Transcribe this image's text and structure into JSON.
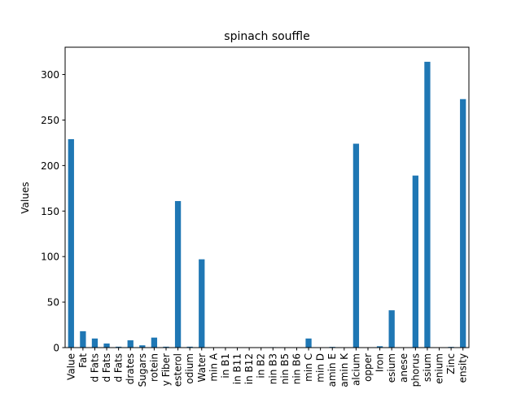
{
  "chart_data": {
    "type": "bar",
    "title": "spinach souffle",
    "xlabel": "",
    "ylabel": "Values",
    "ylim": [
      0,
      330
    ],
    "yticks": [
      0,
      50,
      100,
      150,
      200,
      250,
      300
    ],
    "grid": false,
    "legend": "none",
    "bar_color": "#1f77b4",
    "categories": [
      "Value",
      "Fat",
      "d Fats",
      "d Fats",
      "d Fats",
      "drates",
      "Sugars",
      "rotein",
      "y Fiber",
      "esterol",
      "odium",
      "Water",
      "min A",
      "in B1",
      "in B11",
      "in B12",
      "in B2",
      "nin B3",
      "nin B5",
      "nin B6",
      "min C",
      "min D",
      "amin E",
      "amin K",
      "alcium",
      "opper",
      "Iron",
      "esium",
      "anese",
      "phorus",
      "ssium",
      "enium",
      "Zinc",
      "ensity"
    ],
    "values": [
      229,
      18,
      10,
      4.5,
      1,
      8,
      2.5,
      11,
      1,
      161,
      1,
      97,
      0.3,
      0.1,
      0.1,
      0.1,
      0.2,
      0.5,
      0.3,
      0.1,
      10,
      0.3,
      0.8,
      0.2,
      224,
      0.1,
      1.5,
      41,
      0.2,
      189,
      314,
      0.1,
      0.8,
      273
    ]
  }
}
